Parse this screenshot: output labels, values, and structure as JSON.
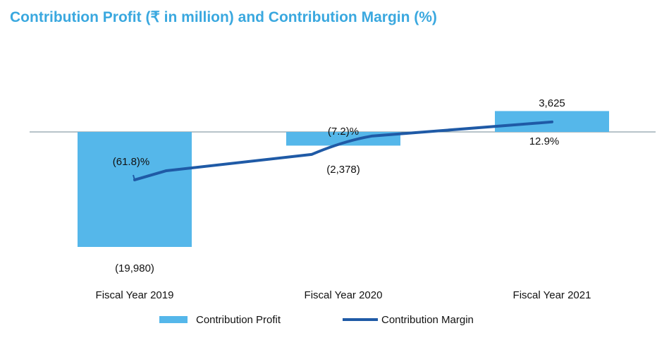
{
  "title": "Contribution  Profit (₹ in million) and Contribution  Margin (%)",
  "colors": {
    "title": "#3aa8df",
    "bar": "#55b7ea",
    "line": "#1f5aa6",
    "axis": "#6f8a94",
    "text": "#111111"
  },
  "chart_data": {
    "type": "bar",
    "categories": [
      "Fiscal Year 2019",
      "Fiscal Year 2020",
      "Fiscal Year 2021"
    ],
    "series": [
      {
        "name": "Contribution Profit",
        "kind": "bar",
        "values": [
          -19980,
          -2378,
          3625
        ],
        "labels": [
          "(19,980)",
          "(2,378)",
          "3,625"
        ]
      },
      {
        "name": "Contribution Margin",
        "kind": "line",
        "values": [
          -61.8,
          -7.2,
          12.9
        ],
        "labels": [
          "(61.8)%",
          "(7.2)%",
          "12.9%"
        ]
      }
    ],
    "legend": [
      "Contribution Profit",
      "Contribution Margin"
    ],
    "legend_position": "bottom",
    "grid": false
  }
}
